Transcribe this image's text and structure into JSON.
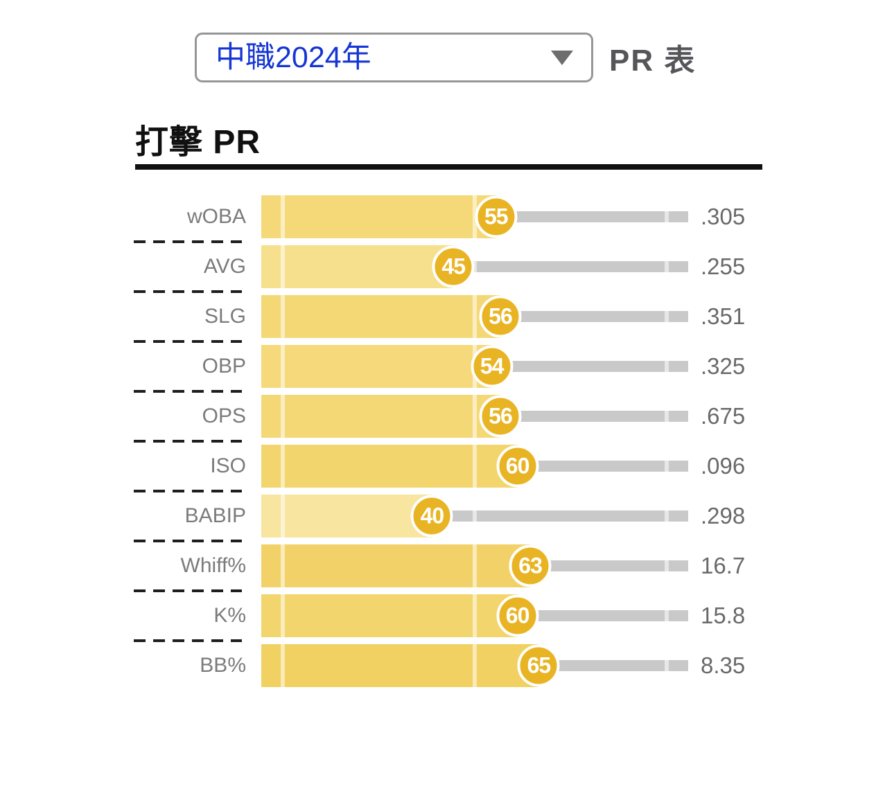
{
  "header": {
    "dropdown": {
      "value": "中職2024年"
    },
    "table_label": "PR 表"
  },
  "title": "打擊 PR",
  "chart_data": {
    "type": "bar",
    "orientation": "horizontal",
    "title": "打擊 PR",
    "xlim": [
      0,
      100
    ],
    "percentile_markers": [
      5,
      50,
      95
    ],
    "legend": "none",
    "rows": [
      {
        "label": "wOBA",
        "pr": 55,
        "value": ".305",
        "bar_color": "#f5d978"
      },
      {
        "label": "AVG",
        "pr": 45,
        "value": ".255",
        "bar_color": "#f6e08d"
      },
      {
        "label": "SLG",
        "pr": 56,
        "value": ".351",
        "bar_color": "#f5d876"
      },
      {
        "label": "OBP",
        "pr": 54,
        "value": ".325",
        "bar_color": "#f5d97a"
      },
      {
        "label": "OPS",
        "pr": 56,
        "value": ".675",
        "bar_color": "#f5d876"
      },
      {
        "label": "ISO",
        "pr": 60,
        "value": ".096",
        "bar_color": "#f3d56e"
      },
      {
        "label": "BABIP",
        "pr": 40,
        "value": ".298",
        "bar_color": "#f8e5a0"
      },
      {
        "label": "Whiff%",
        "pr": 63,
        "value": "16.7",
        "bar_color": "#f2d268"
      },
      {
        "label": "K%",
        "pr": 60,
        "value": "15.8",
        "bar_color": "#f3d56e"
      },
      {
        "label": "BB%",
        "pr": 65,
        "value": "8.35",
        "bar_color": "#f1d161"
      }
    ],
    "colors": {
      "circle": "#e9b424",
      "track": "#c9c9c9",
      "label_text": "#7b7b7b",
      "value_text": "#696969",
      "dropdown_text": "#1535d4"
    }
  }
}
